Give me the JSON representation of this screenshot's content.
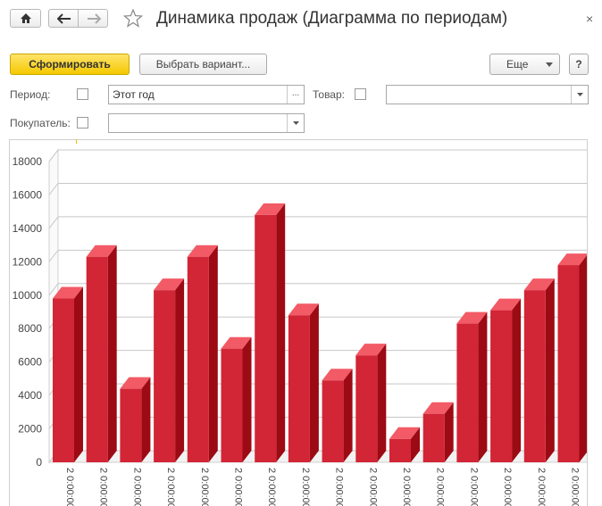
{
  "window": {
    "title": "Динамика продаж (Диаграмма по периодам)",
    "close_glyph": "×"
  },
  "toolbar": {
    "generate_label": "Сформировать",
    "choose_variant_label": "Выбрать вариант...",
    "more_label": "Еще",
    "help_label": "?"
  },
  "filters": {
    "period_label": "Период:",
    "period_value": "Этот год",
    "period_select_glyph": "...",
    "product_label": "Товар:",
    "product_value": "",
    "buyer_label": "Покупатель:",
    "buyer_value": ""
  },
  "icons": {
    "home": "home-icon",
    "back": "arrow-left-icon",
    "forward": "arrow-right-icon",
    "favorite": "star-outline-icon",
    "dropdown": "triangle-down-icon"
  },
  "colors": {
    "bar_front": "#d22535",
    "bar_top": "#f25a66",
    "bar_side": "#9c0a14",
    "primary_button": "#f4c900"
  },
  "chart_data": {
    "type": "bar",
    "bar_style": "3d",
    "values": [
      9800,
      12300,
      4400,
      10300,
      12300,
      6800,
      14800,
      8800,
      4900,
      6400,
      1400,
      2900,
      8300,
      9100,
      10300,
      11800
    ],
    "y_ticks": [
      0,
      2000,
      4000,
      6000,
      8000,
      10000,
      12000,
      14000,
      16000,
      18000
    ],
    "ylim": [
      0,
      18000
    ],
    "x_tick_label": "2 0:00:00",
    "grid": true,
    "legend": "none"
  }
}
